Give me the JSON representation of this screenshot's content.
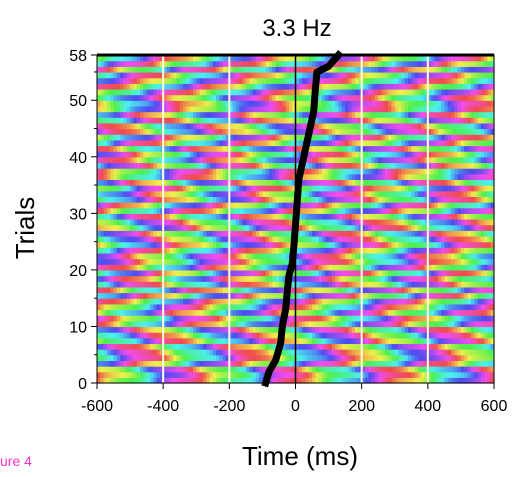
{
  "chart_data": {
    "type": "heatmap",
    "title": "3.3 Hz",
    "xlabel": "Time (ms)",
    "ylabel": "Trials",
    "xlim": [
      -600,
      600
    ],
    "ylim": [
      0,
      58
    ],
    "x_ticks": [
      "-600",
      "-400",
      "-200",
      "0",
      "200",
      "400",
      "600"
    ],
    "y_ticks": [
      "0",
      "10",
      "20",
      "30",
      "40",
      "50",
      "58"
    ],
    "color_encoding": "phase (cyclic hue)",
    "frequency_hz": 3.3,
    "vertical_gridlines_x": [
      -400,
      -200,
      200,
      400
    ],
    "gridline_color": "#ffffe0",
    "zero_line_x": 0,
    "trials": 58,
    "reaction_time_curve": {
      "color": "#000000",
      "points": [
        {
          "trial": 0,
          "time": -90
        },
        {
          "trial": 2,
          "time": -80
        },
        {
          "trial": 4,
          "time": -60
        },
        {
          "trial": 7,
          "time": -45
        },
        {
          "trial": 10,
          "time": -40
        },
        {
          "trial": 13,
          "time": -30
        },
        {
          "trial": 16,
          "time": -25
        },
        {
          "trial": 19,
          "time": -20
        },
        {
          "trial": 21,
          "time": -10
        },
        {
          "trial": 24,
          "time": -5
        },
        {
          "trial": 28,
          "time": 0
        },
        {
          "trial": 32,
          "time": 5
        },
        {
          "trial": 36,
          "time": 10
        },
        {
          "trial": 40,
          "time": 25
        },
        {
          "trial": 44,
          "time": 40
        },
        {
          "trial": 48,
          "time": 55
        },
        {
          "trial": 52,
          "time": 60
        },
        {
          "trial": 55,
          "time": 65
        },
        {
          "trial": 56,
          "time": 100
        },
        {
          "trial": 58,
          "time": 130
        }
      ]
    }
  },
  "figure_label": "ure 4"
}
